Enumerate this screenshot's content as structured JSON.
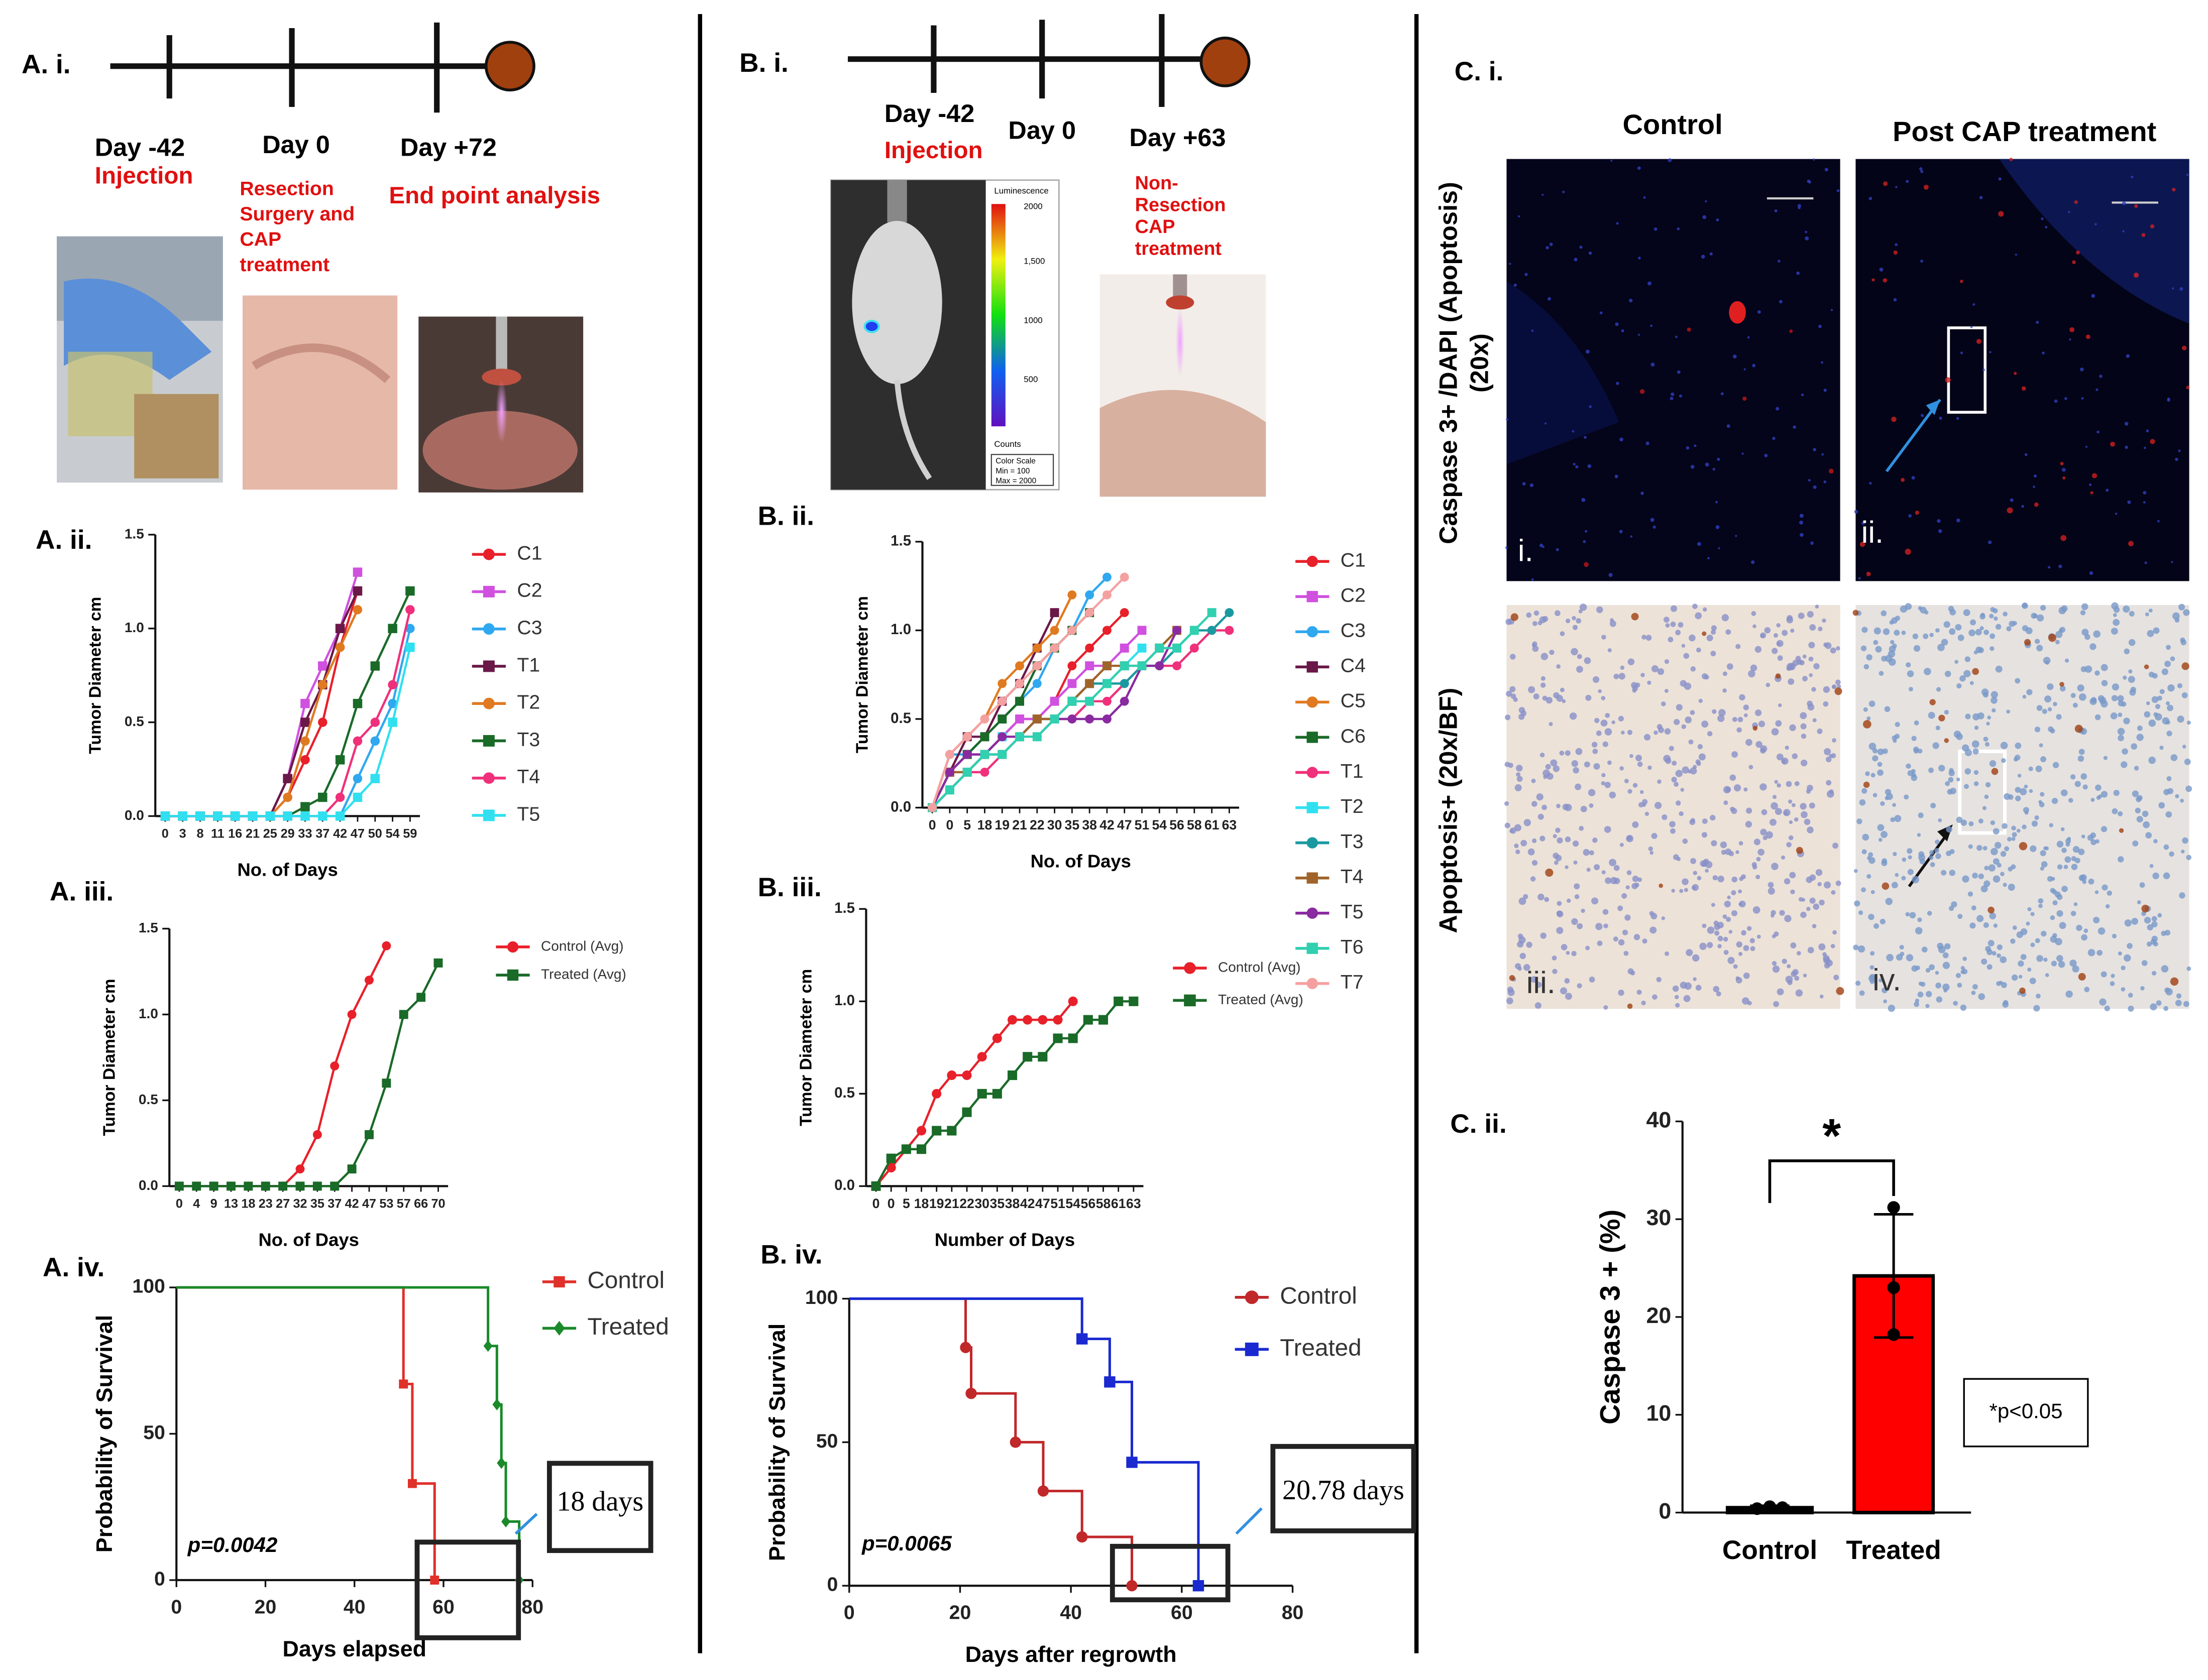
{
  "panel_labels": [
    "A. i.",
    "A. ii.",
    "A. iii.",
    "A. iv.",
    "B. i.",
    "B. ii.",
    "B. iii.",
    "B. iv.",
    "C. i.",
    "C. ii."
  ],
  "timeline_a": {
    "events": [
      {
        "day": "Day -42",
        "note": [
          "Injection"
        ]
      },
      {
        "day": "Day 0",
        "note": [
          "Resection",
          "Surgery and",
          "CAP",
          "treatment"
        ]
      },
      {
        "day": "Day +72",
        "note": [
          "End point analysis"
        ]
      }
    ]
  },
  "timeline_b": {
    "events": [
      {
        "day": "Day -42",
        "note": [
          "Injection"
        ]
      },
      {
        "day": "Day 0"
      },
      {
        "day": "Day +63",
        "note": [
          "Non-",
          "Resection",
          "CAP",
          "treatment"
        ]
      }
    ],
    "imaging": {
      "title": "Luminescence",
      "ticks": [
        "2000",
        "1,500",
        "1000",
        "500"
      ],
      "unit": "Counts",
      "scale": [
        "Color Scale",
        "Min = 100",
        "Max = 2000"
      ]
    }
  },
  "histology": {
    "columns": [
      "Control",
      "Post CAP treatment"
    ],
    "rows": [
      [
        "Caspase 3+ /DAPI (Apoptosis)",
        "(20x)"
      ],
      [
        "Apoptosis+ (20x/BF)"
      ]
    ],
    "tiles": [
      "i.",
      "ii.",
      "iii.",
      "iv."
    ]
  },
  "chart_data": [
    {
      "type": "line",
      "xlabel": "No. of Days",
      "ylabel": "Tumor Diameter cm",
      "categories": [
        "0",
        "3",
        "8",
        "11",
        "16",
        "21",
        "25",
        "29",
        "33",
        "37",
        "42",
        "47",
        "50",
        "54",
        "59"
      ],
      "ylim": [
        0,
        1.5
      ],
      "yticks": [
        {
          "value": 0,
          "label": "0.0"
        },
        {
          "value": 0.5,
          "label": "0.5"
        },
        {
          "value": 1,
          "label": "1.0"
        },
        {
          "value": 1.5,
          "label": "1.5"
        }
      ],
      "series": [
        {
          "name": "C1",
          "color": "#e8202a",
          "marker": "circle",
          "values": [
            0,
            0,
            0,
            0,
            0,
            0,
            0,
            0.1,
            0.3,
            0.5,
            0.9,
            1.2,
            null,
            null,
            null
          ]
        },
        {
          "name": "C2",
          "color": "#d050e0",
          "marker": "square",
          "values": [
            0,
            0,
            0,
            0,
            0,
            0,
            0,
            0.2,
            0.6,
            0.8,
            1.0,
            1.3,
            null,
            null,
            null
          ]
        },
        {
          "name": "C3",
          "color": "#30a8f0",
          "marker": "circle",
          "values": [
            0,
            0,
            0,
            0,
            0,
            0,
            0,
            0,
            0,
            0,
            0,
            0.2,
            0.4,
            0.6,
            1.0
          ]
        },
        {
          "name": "T1",
          "color": "#6a1848",
          "marker": "square",
          "values": [
            0,
            0,
            0,
            0,
            0,
            0,
            0,
            0.2,
            0.5,
            0.7,
            1.0,
            1.2,
            null,
            null,
            null
          ]
        },
        {
          "name": "T2",
          "color": "#e07a20",
          "marker": "circle",
          "values": [
            0,
            0,
            0,
            0,
            0,
            0,
            0,
            0.1,
            0.4,
            0.7,
            0.9,
            1.1,
            null,
            null,
            null
          ]
        },
        {
          "name": "T3",
          "color": "#1a6a28",
          "marker": "square",
          "values": [
            0,
            0,
            0,
            0,
            0,
            0,
            0,
            0,
            0.05,
            0.1,
            0.3,
            0.6,
            0.8,
            1.0,
            1.2
          ]
        },
        {
          "name": "T4",
          "color": "#f0307a",
          "marker": "circle",
          "values": [
            0,
            0,
            0,
            0,
            0,
            0,
            0,
            0,
            0,
            0,
            0.1,
            0.4,
            0.5,
            0.7,
            1.1
          ]
        },
        {
          "name": "T5",
          "color": "#30e0f0",
          "marker": "square",
          "values": [
            0,
            0,
            0,
            0,
            0,
            0,
            0,
            0,
            0,
            0,
            0,
            0.1,
            0.2,
            0.5,
            0.9
          ]
        }
      ]
    },
    {
      "type": "line",
      "xlabel": "No. of Days",
      "ylabel": "Tumor Diameter cm",
      "categories": [
        "0",
        "4",
        "9",
        "13",
        "18",
        "23",
        "27",
        "32",
        "35",
        "37",
        "42",
        "47",
        "53",
        "57",
        "66",
        "70"
      ],
      "ylim": [
        0,
        1.5
      ],
      "yticks": [
        {
          "value": 0,
          "label": "0.0"
        },
        {
          "value": 0.5,
          "label": "0.5"
        },
        {
          "value": 1,
          "label": "1.0"
        },
        {
          "value": 1.5,
          "label": "1.5"
        }
      ],
      "series": [
        {
          "name": "Control (Avg)",
          "color": "#e8202a",
          "marker": "circle",
          "values": [
            0,
            0,
            0,
            0,
            0,
            0,
            0,
            0.1,
            0.3,
            0.7,
            1.0,
            1.2,
            1.4,
            null,
            null,
            null
          ]
        },
        {
          "name": "Treated (Avg)",
          "color": "#1a6a28",
          "marker": "square",
          "values": [
            0,
            0,
            0,
            0,
            0,
            0,
            0,
            0,
            0,
            0,
            0.1,
            0.3,
            0.6,
            1.0,
            1.1,
            1.3
          ]
        }
      ]
    },
    {
      "type": "step",
      "xlabel": "Days elapsed",
      "ylabel": "Probability of Survival",
      "xlim": [
        0,
        80
      ],
      "xticks": [
        0,
        20,
        40,
        60,
        80
      ],
      "ylim": [
        0,
        100
      ],
      "yticks": [
        0,
        50,
        100
      ],
      "annotations": [
        "p=0.0042",
        "18 days"
      ],
      "series": [
        {
          "name": "Control",
          "color": "#e0302a",
          "marker": "square",
          "x": [
            0,
            51,
            53,
            58
          ],
          "values": [
            100,
            67,
            33,
            0
          ]
        },
        {
          "name": "Treated",
          "color": "#1a8a2a",
          "marker": "diamond",
          "x": [
            0,
            70,
            72,
            73,
            74,
            77
          ],
          "values": [
            100,
            80,
            60,
            40,
            20,
            0
          ]
        }
      ]
    },
    {
      "type": "line",
      "xlabel": "No. of Days",
      "ylabel": "Tumor Diameter cm",
      "categories": [
        "0",
        "0",
        "5",
        "18",
        "19",
        "21",
        "22",
        "30",
        "35",
        "38",
        "42",
        "47",
        "51",
        "54",
        "56",
        "58",
        "61",
        "63"
      ],
      "ylim": [
        0,
        1.5
      ],
      "yticks": [
        {
          "value": 0,
          "label": "0.0"
        },
        {
          "value": 0.5,
          "label": "0.5"
        },
        {
          "value": 1,
          "label": "1.0"
        },
        {
          "value": 1.5,
          "label": "1.5"
        }
      ],
      "series": [
        {
          "name": "C1",
          "color": "#e8202a",
          "marker": "circle",
          "values": [
            0,
            0.1,
            0.2,
            0.3,
            0.4,
            0.5,
            0.5,
            0.6,
            0.8,
            0.9,
            1.0,
            1.1,
            null,
            null,
            null,
            null,
            null,
            null
          ]
        },
        {
          "name": "C2",
          "color": "#d050e0",
          "marker": "square",
          "values": [
            0,
            0.2,
            0.3,
            0.3,
            0.4,
            0.5,
            0.5,
            0.6,
            0.7,
            0.8,
            0.8,
            0.9,
            1.0,
            null,
            null,
            null,
            null,
            null
          ]
        },
        {
          "name": "C3",
          "color": "#30a8f0",
          "marker": "circle",
          "values": [
            0,
            0.3,
            0.3,
            0.4,
            0.5,
            0.6,
            0.7,
            0.9,
            1.0,
            1.2,
            1.3,
            null,
            null,
            null,
            null,
            null,
            null,
            null
          ]
        },
        {
          "name": "C4",
          "color": "#6a1848",
          "marker": "square",
          "values": [
            0,
            0.2,
            0.4,
            0.4,
            0.6,
            0.7,
            0.9,
            1.1,
            null,
            null,
            null,
            null,
            null,
            null,
            null,
            null,
            null,
            null
          ]
        },
        {
          "name": "C5",
          "color": "#e07a20",
          "marker": "circle",
          "values": [
            0,
            0.3,
            0.4,
            0.5,
            0.7,
            0.8,
            0.9,
            1.0,
            1.2,
            null,
            null,
            null,
            null,
            null,
            null,
            null,
            null,
            null
          ]
        },
        {
          "name": "C6",
          "color": "#1a6a28",
          "marker": "square",
          "values": [
            0,
            0.2,
            0.3,
            0.4,
            0.5,
            0.6,
            0.8,
            0.9,
            1.0,
            1.1,
            null,
            null,
            null,
            null,
            null,
            null,
            null,
            null
          ]
        },
        {
          "name": "T1",
          "color": "#f0307a",
          "marker": "circle",
          "values": [
            0,
            0.1,
            0.2,
            0.2,
            0.3,
            0.4,
            0.4,
            0.5,
            0.5,
            0.6,
            0.6,
            0.7,
            0.8,
            0.8,
            0.8,
            0.9,
            1.0,
            1.0
          ]
        },
        {
          "name": "T2",
          "color": "#30e0f0",
          "marker": "square",
          "values": [
            0,
            0.1,
            0.2,
            0.3,
            0.4,
            0.4,
            0.5,
            0.5,
            0.6,
            0.7,
            0.7,
            0.8,
            0.9,
            null,
            null,
            null,
            null,
            null
          ]
        },
        {
          "name": "T3",
          "color": "#1a9aa0",
          "marker": "circle",
          "values": [
            0,
            0.1,
            0.2,
            0.3,
            0.3,
            0.4,
            0.5,
            0.5,
            0.6,
            0.7,
            0.7,
            0.7,
            0.8,
            0.8,
            0.9,
            1.0,
            1.0,
            1.1
          ]
        },
        {
          "name": "T4",
          "color": "#a0642a",
          "marker": "square",
          "values": [
            0,
            0.2,
            0.2,
            0.3,
            0.3,
            0.4,
            0.5,
            0.5,
            0.6,
            0.7,
            0.8,
            0.8,
            0.8,
            0.9,
            1.0,
            null,
            null,
            null
          ]
        },
        {
          "name": "T5",
          "color": "#8a2aa0",
          "marker": "circle",
          "values": [
            0,
            0.2,
            0.3,
            0.3,
            0.4,
            0.4,
            0.4,
            0.5,
            0.5,
            0.5,
            0.5,
            0.6,
            0.8,
            0.8,
            1.0,
            null,
            null,
            null
          ]
        },
        {
          "name": "T6",
          "color": "#30d0b0",
          "marker": "square",
          "values": [
            0,
            0.1,
            0.2,
            0.3,
            0.3,
            0.4,
            0.4,
            0.5,
            0.6,
            0.6,
            0.7,
            0.8,
            0.8,
            0.9,
            0.9,
            1.0,
            1.1,
            null
          ]
        },
        {
          "name": "T7",
          "color": "#f5a0a0",
          "marker": "circle",
          "values": [
            0,
            0.3,
            0.4,
            0.5,
            0.6,
            0.7,
            0.8,
            0.9,
            1.0,
            1.1,
            1.2,
            1.3,
            null,
            null,
            null,
            null,
            null,
            null
          ]
        }
      ]
    },
    {
      "type": "line",
      "xlabel": "Number of Days",
      "ylabel": "Tumor Diameter cm",
      "categories": [
        "0",
        "0",
        "5",
        "18",
        "19",
        "21",
        "22",
        "30",
        "35",
        "38",
        "42",
        "47",
        "51",
        "54",
        "56",
        "58",
        "61",
        "63"
      ],
      "ylim": [
        0,
        1.5
      ],
      "yticks": [
        {
          "value": 0,
          "label": "0.0"
        },
        {
          "value": 0.5,
          "label": "0.5"
        },
        {
          "value": 1,
          "label": "1.0"
        },
        {
          "value": 1.5,
          "label": "1.5"
        }
      ],
      "series": [
        {
          "name": "Control (Avg)",
          "color": "#e8202a",
          "marker": "circle",
          "values": [
            0,
            0.1,
            0.2,
            0.3,
            0.5,
            0.6,
            0.6,
            0.7,
            0.8,
            0.9,
            0.9,
            0.9,
            0.9,
            1.0,
            null,
            null,
            null,
            null
          ]
        },
        {
          "name": "Treated (Avg)",
          "color": "#1a6a28",
          "marker": "square",
          "values": [
            0,
            0.15,
            0.2,
            0.2,
            0.3,
            0.3,
            0.4,
            0.5,
            0.5,
            0.6,
            0.7,
            0.7,
            0.8,
            0.8,
            0.9,
            0.9,
            1.0,
            1.0
          ]
        }
      ]
    },
    {
      "type": "step",
      "xlabel": "Days after regrowth",
      "ylabel": "Probability of Survival",
      "xlim": [
        0,
        80
      ],
      "xticks": [
        0,
        20,
        40,
        60,
        80
      ],
      "ylim": [
        0,
        100
      ],
      "yticks": [
        0,
        50,
        100
      ],
      "annotations": [
        "p=0.0065",
        "20.78 days"
      ],
      "series": [
        {
          "name": "Control",
          "color": "#c0282a",
          "marker": "circle",
          "x": [
            0,
            21,
            22,
            30,
            35,
            42,
            51
          ],
          "values": [
            100,
            83,
            67,
            50,
            33,
            17,
            0
          ]
        },
        {
          "name": "Treated",
          "color": "#1a2ad0",
          "marker": "square",
          "x": [
            0,
            42,
            47,
            51,
            63
          ],
          "values": [
            100,
            86,
            71,
            43,
            0
          ]
        }
      ]
    },
    {
      "type": "bar",
      "ylabel": "Caspase 3 + (%)",
      "categories": [
        "Control",
        "Treated"
      ],
      "values": [
        0.5,
        24.2
      ],
      "errors": [
        0.2,
        6.3
      ],
      "points": [
        [
          0.4,
          0.6,
          0.5
        ],
        [
          31.2,
          23.0,
          18.2
        ]
      ],
      "colors": [
        "#000000",
        "#ff0000"
      ],
      "ylim": [
        0,
        40
      ],
      "yticks": [
        0,
        10,
        20,
        30,
        40
      ],
      "annotations": [
        "*",
        "*p<0.05"
      ]
    }
  ]
}
